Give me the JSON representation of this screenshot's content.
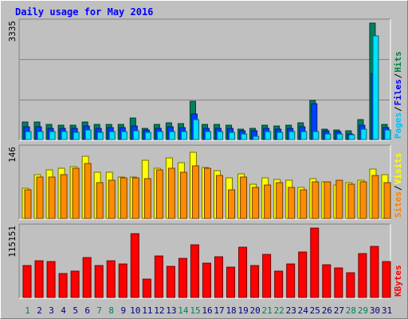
{
  "title": "Daily usage for May 2016",
  "chart_data": [
    {
      "type": "bar",
      "categories": [
        "1",
        "2",
        "3",
        "4",
        "5",
        "6",
        "7",
        "8",
        "9",
        "10",
        "11",
        "12",
        "13",
        "14",
        "15",
        "16",
        "17",
        "18",
        "19",
        "20",
        "21",
        "22",
        "23",
        "24",
        "25",
        "26",
        "27",
        "28",
        "29",
        "30",
        "31"
      ],
      "weekend_days": [
        "1",
        "7",
        "8",
        "14",
        "15",
        "21",
        "22",
        "28",
        "29"
      ],
      "y_tick_label": "3335",
      "ylim": [
        0,
        3335
      ],
      "side_labels": [
        {
          "text": "Pages",
          "color": "#00c0ff"
        },
        {
          "text": "/",
          "color": "#000000"
        },
        {
          "text": "Files",
          "color": "#0000ff"
        },
        {
          "text": "/",
          "color": "#000000"
        },
        {
          "text": "Hits",
          "color": "#008040"
        }
      ],
      "series": [
        {
          "name": "Hits",
          "color": "#008060",
          "values": [
            510,
            500,
            430,
            420,
            420,
            500,
            440,
            440,
            440,
            620,
            320,
            440,
            470,
            450,
            1100,
            440,
            440,
            410,
            300,
            310,
            420,
            390,
            410,
            490,
            1120,
            300,
            270,
            240,
            560,
            3335,
            440
          ]
        },
        {
          "name": "Files",
          "color": "#0040ff",
          "values": [
            370,
            370,
            330,
            320,
            330,
            380,
            330,
            340,
            340,
            380,
            280,
            330,
            360,
            350,
            730,
            330,
            330,
            320,
            240,
            240,
            330,
            300,
            330,
            370,
            1030,
            260,
            230,
            170,
            410,
            1890,
            340
          ]
        },
        {
          "name": "Pages",
          "color": "#00e0ff",
          "values": [
            230,
            230,
            220,
            220,
            210,
            270,
            210,
            230,
            220,
            240,
            200,
            220,
            230,
            220,
            580,
            220,
            220,
            200,
            170,
            100,
            220,
            210,
            220,
            230,
            230,
            170,
            150,
            130,
            290,
            2960,
            270
          ]
        }
      ]
    },
    {
      "type": "bar",
      "categories": [
        "1",
        "2",
        "3",
        "4",
        "5",
        "6",
        "7",
        "8",
        "9",
        "10",
        "11",
        "12",
        "13",
        "14",
        "15",
        "16",
        "17",
        "18",
        "19",
        "20",
        "21",
        "22",
        "23",
        "24",
        "25",
        "26",
        "27",
        "28",
        "29",
        "30",
        "31"
      ],
      "y_tick_label": "146",
      "ylim": [
        0,
        146
      ],
      "side_labels": [
        {
          "text": "Sites",
          "color": "#ff8000"
        },
        {
          "text": "/",
          "color": "#000000"
        },
        {
          "text": "Visits",
          "color": "#ffff00"
        }
      ],
      "series": [
        {
          "name": "Visits",
          "color": "#ffff00",
          "values": [
            64,
            93,
            103,
            106,
            109,
            131,
            98,
            98,
            88,
            87,
            122,
            106,
            128,
            118,
            140,
            107,
            101,
            85,
            94,
            72,
            85,
            82,
            80,
            65,
            84,
            78,
            70,
            76,
            81,
            104,
            93
          ]
        },
        {
          "name": "Sites",
          "color": "#ff8c00",
          "values": [
            60,
            88,
            87,
            92,
            106,
            116,
            75,
            80,
            85,
            85,
            84,
            102,
            105,
            98,
            111,
            106,
            90,
            61,
            88,
            65,
            70,
            76,
            66,
            60,
            78,
            77,
            81,
            72,
            77,
            90,
            76
          ]
        }
      ]
    },
    {
      "type": "bar",
      "categories": [
        "1",
        "2",
        "3",
        "4",
        "5",
        "6",
        "7",
        "8",
        "9",
        "10",
        "11",
        "12",
        "13",
        "14",
        "15",
        "16",
        "17",
        "18",
        "19",
        "20",
        "21",
        "22",
        "23",
        "24",
        "25",
        "26",
        "27",
        "28",
        "29",
        "30",
        "31"
      ],
      "y_tick_label": "115151",
      "ylim": [
        0,
        115151
      ],
      "side_labels": [
        {
          "text": "KBytes",
          "color": "#ff0000"
        }
      ],
      "series": [
        {
          "name": "KBytes",
          "color": "#ff0000",
          "values": [
            53000,
            61000,
            59000,
            40000,
            44000,
            66000,
            53000,
            61000,
            55000,
            106000,
            30000,
            69000,
            52000,
            65000,
            88000,
            57000,
            68000,
            50000,
            84000,
            53000,
            71000,
            44000,
            56000,
            75000,
            115151,
            54000,
            49000,
            41000,
            73000,
            85000,
            59000
          ]
        }
      ]
    }
  ]
}
